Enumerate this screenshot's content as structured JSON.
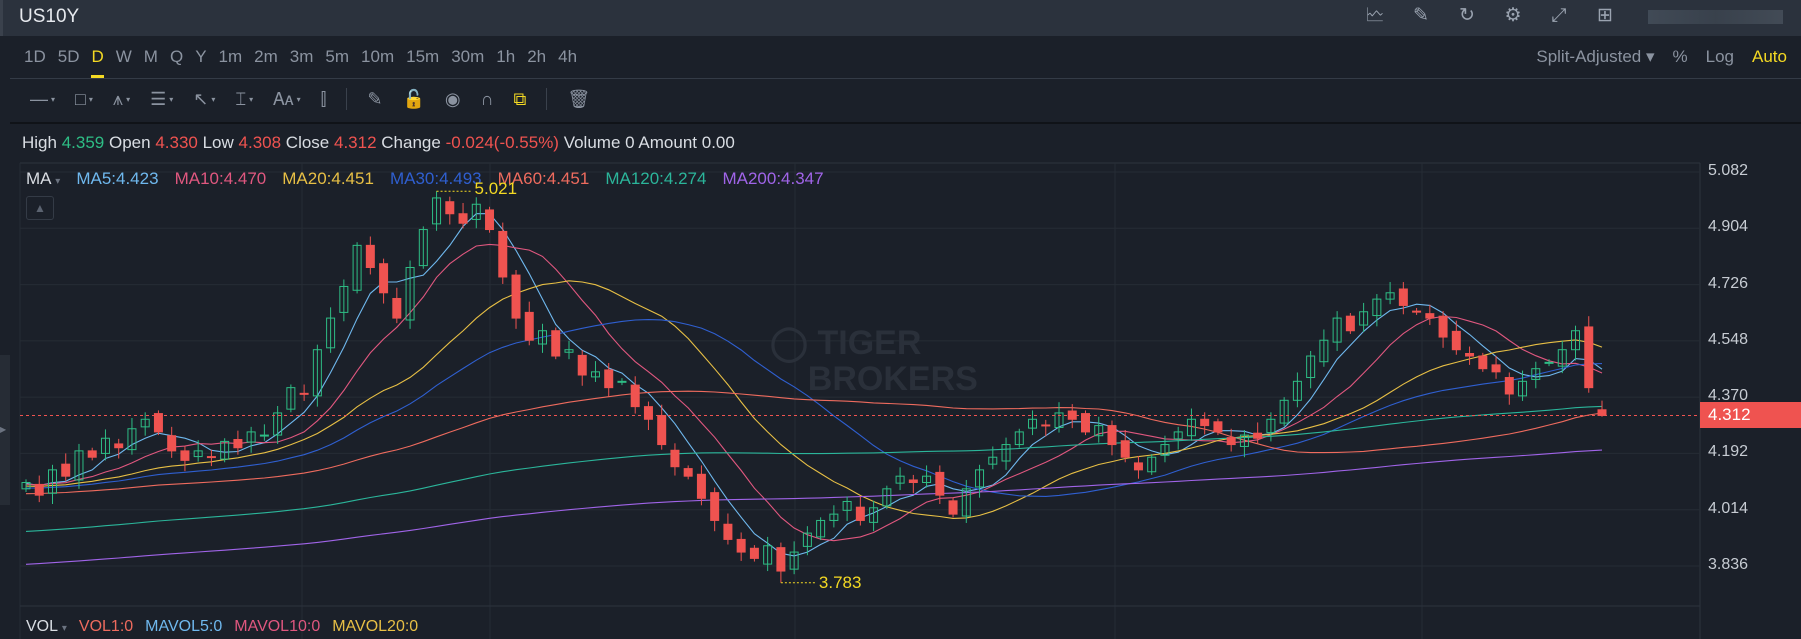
{
  "window": {
    "title": "US10Y",
    "icons": [
      "chart-monitor-icon",
      "edit-icon",
      "refresh-icon",
      "settings-icon",
      "fullscreen-icon",
      "grid-layout-icon"
    ]
  },
  "timeframes": [
    "1D",
    "5D",
    "D",
    "W",
    "M",
    "Q",
    "Y",
    "1m",
    "2m",
    "3m",
    "5m",
    "10m",
    "15m",
    "30m",
    "1h",
    "2h",
    "4h"
  ],
  "active_timeframe": "D",
  "chart_options": {
    "adjust": "Split-Adjusted",
    "percent": "%",
    "log": "Log",
    "auto": "Auto"
  },
  "drawing_tools": [
    "line-tool-icon",
    "rectangle-tool-icon",
    "pattern-tool-icon",
    "fibonacci-tool-icon",
    "arrow-tool-icon",
    "measure-tool-icon",
    "text-tool-icon",
    "indicator-tool-icon",
    "pencil-icon",
    "unlock-icon",
    "eye-icon",
    "magnet-icon",
    "link-icon",
    "trash-icon"
  ],
  "ohlc": {
    "high_label": "High",
    "high": "4.359",
    "open_label": "Open",
    "open": "4.330",
    "low_label": "Low",
    "low": "4.308",
    "close_label": "Close",
    "close": "4.312",
    "change_label": "Change",
    "change": "-0.024(-0.55%)",
    "volume_label": "Volume",
    "volume": "0",
    "amount_label": "Amount",
    "amount": "0.00"
  },
  "ma_legend": {
    "label": "MA",
    "items": [
      {
        "text": "MA5:4.423",
        "color": "#6fb8ee",
        "period": 5
      },
      {
        "text": "MA10:4.470",
        "color": "#e0577f",
        "period": 10
      },
      {
        "text": "MA20:4.451",
        "color": "#e7bf45",
        "period": 20
      },
      {
        "text": "MA30:4.493",
        "color": "#2f5fd0",
        "period": 30
      },
      {
        "text": "MA60:4.451",
        "color": "#ee6b5e",
        "period": 60
      },
      {
        "text": "MA120:4.274",
        "color": "#2bb59a",
        "period": 120
      },
      {
        "text": "MA200:4.347",
        "color": "#a064e8",
        "period": 200
      }
    ]
  },
  "price_axis": [
    "5.082",
    "4.904",
    "4.726",
    "4.548",
    "4.370",
    "4.192",
    "4.014",
    "3.836"
  ],
  "current_price": "4.312",
  "high_marker": "5.021",
  "low_marker": "3.783",
  "watermark": "TIGER BROKERS",
  "volume_legend": {
    "label": "VOL",
    "items": [
      {
        "text": "VOL1:0",
        "color": "#ee6b5e"
      },
      {
        "text": "MAVOL5:0",
        "color": "#6fb8ee"
      },
      {
        "text": "MAVOL10:0",
        "color": "#e0577f"
      },
      {
        "text": "MAVOL20:0",
        "color": "#e7bf45"
      }
    ]
  },
  "colors": {
    "up": "#2ebd85",
    "down": "#ef5350",
    "accent": "#f4d923"
  },
  "closes": [
    4.1,
    4.06,
    4.14,
    4.12,
    4.2,
    4.18,
    4.24,
    4.21,
    4.27,
    4.3,
    4.26,
    4.2,
    4.17,
    4.2,
    4.18,
    4.23,
    4.21,
    4.26,
    4.25,
    4.32,
    4.4,
    4.38,
    4.52,
    4.62,
    4.72,
    4.85,
    4.78,
    4.7,
    4.62,
    4.78,
    4.9,
    5.0,
    4.95,
    4.92,
    4.98,
    4.9,
    4.75,
    4.62,
    4.55,
    4.58,
    4.5,
    4.52,
    4.44,
    4.45,
    4.4,
    4.42,
    4.34,
    4.3,
    4.22,
    4.15,
    4.12,
    4.05,
    3.98,
    3.92,
    3.88,
    3.86,
    3.9,
    3.82,
    3.88,
    3.94,
    3.98,
    4.0,
    4.04,
    3.98,
    4.02,
    4.08,
    4.12,
    4.1,
    4.12,
    4.06,
    4.0,
    4.08,
    4.14,
    4.18,
    4.22,
    4.26,
    4.3,
    4.28,
    4.32,
    4.3,
    4.26,
    4.28,
    4.22,
    4.18,
    4.14,
    4.18,
    4.22,
    4.26,
    4.3,
    4.28,
    4.26,
    4.22,
    4.25,
    4.24,
    4.3,
    4.36,
    4.42,
    4.5,
    4.55,
    4.62,
    4.58,
    4.64,
    4.68,
    4.7,
    4.66,
    4.64,
    4.62,
    4.56,
    4.52,
    4.5,
    4.46,
    4.45,
    4.38,
    4.42,
    4.46,
    4.48,
    4.52,
    4.58,
    4.4,
    4.312
  ]
}
